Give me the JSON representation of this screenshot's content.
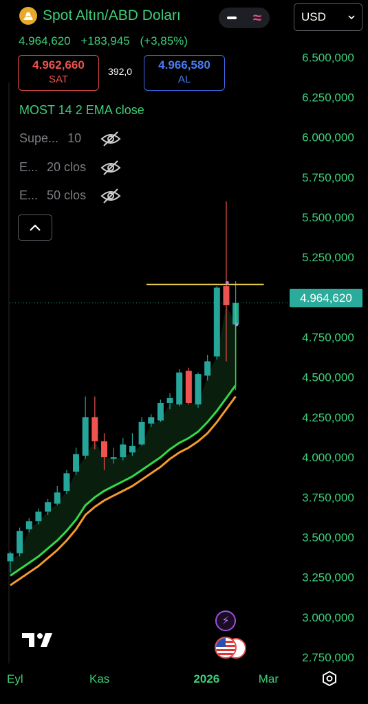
{
  "header": {
    "title": "Spot Altın/ABD Doları",
    "currency": "USD",
    "last_price": "4.964,620",
    "change": "+183,945",
    "change_pct": "(+3,85%)",
    "sell": {
      "value": "4.962,660",
      "label": "SAT"
    },
    "spread": "392,0",
    "buy": {
      "value": "4.966,580",
      "label": "AL"
    }
  },
  "indicators": {
    "main": "MOST 14 2 EMA close",
    "hidden": [
      {
        "name": "Supe...",
        "param": "10"
      },
      {
        "name": "E...",
        "param": "20 clos"
      },
      {
        "name": "E...",
        "param": "50 clos"
      }
    ]
  },
  "price_tag": "4.964,620",
  "colors": {
    "up": "#26a69a",
    "down": "#ef5350",
    "most_line": "#33d94a",
    "ema_line": "#f59a2d",
    "resistance": "#f2d84b",
    "axis_text": "#3ecf78"
  },
  "chart_data": {
    "type": "candlestick",
    "y_ticks": [
      "6.500,000",
      "6.250,000",
      "6.000,000",
      "5.750,000",
      "5.500,000",
      "5.250,000",
      "5.000,000",
      "4.750,000",
      "4.500,000",
      "4.250,000",
      "4.000,000",
      "3.750,000",
      "3.500,000",
      "3.250,000",
      "3.000,000",
      "2.750,000"
    ],
    "y_tick_values": [
      6500,
      6250,
      6000,
      5750,
      5500,
      5250,
      5000,
      4750,
      4500,
      4250,
      4000,
      3750,
      3500,
      3250,
      3000,
      2750
    ],
    "x_ticks": [
      "Eyl",
      "Kas",
      "2026",
      "Mar"
    ],
    "x_tick_index": [
      0.5,
      9.5,
      20.9,
      27.5
    ],
    "ylim": [
      2690,
      6600
    ],
    "candles": [
      {
        "o": 3350,
        "h": 3410,
        "l": 3280,
        "c": 3400
      },
      {
        "o": 3400,
        "h": 3560,
        "l": 3380,
        "c": 3540
      },
      {
        "o": 3550,
        "h": 3620,
        "l": 3530,
        "c": 3600
      },
      {
        "o": 3600,
        "h": 3680,
        "l": 3580,
        "c": 3660
      },
      {
        "o": 3660,
        "h": 3740,
        "l": 3640,
        "c": 3720
      },
      {
        "o": 3710,
        "h": 3820,
        "l": 3700,
        "c": 3780
      },
      {
        "o": 3790,
        "h": 3920,
        "l": 3770,
        "c": 3900
      },
      {
        "o": 3910,
        "h": 4060,
        "l": 3890,
        "c": 4020
      },
      {
        "o": 4010,
        "h": 4380,
        "l": 3990,
        "c": 4250
      },
      {
        "o": 4250,
        "h": 4380,
        "l": 4050,
        "c": 4100
      },
      {
        "o": 4100,
        "h": 4150,
        "l": 3920,
        "c": 4000
      },
      {
        "o": 3990,
        "h": 4060,
        "l": 3960,
        "c": 4000
      },
      {
        "o": 4000,
        "h": 4120,
        "l": 3980,
        "c": 4080
      },
      {
        "o": 4030,
        "h": 4150,
        "l": 4010,
        "c": 4070
      },
      {
        "o": 4080,
        "h": 4250,
        "l": 4070,
        "c": 4220
      },
      {
        "o": 4210,
        "h": 4270,
        "l": 4190,
        "c": 4250
      },
      {
        "o": 4230,
        "h": 4360,
        "l": 4220,
        "c": 4340
      },
      {
        "o": 4340,
        "h": 4400,
        "l": 4300,
        "c": 4370
      },
      {
        "o": 4330,
        "h": 4550,
        "l": 4320,
        "c": 4530
      },
      {
        "o": 4540,
        "h": 4560,
        "l": 4330,
        "c": 4340
      },
      {
        "o": 4330,
        "h": 4530,
        "l": 4310,
        "c": 4520
      },
      {
        "o": 4510,
        "h": 4640,
        "l": 4480,
        "c": 4600
      },
      {
        "o": 4630,
        "h": 5070,
        "l": 4610,
        "c": 5060
      },
      {
        "o": 5070,
        "h": 5600,
        "l": 4600,
        "c": 4950
      },
      {
        "o": 4830,
        "h": 5100,
        "l": 4420,
        "c": 4964.62
      }
    ],
    "most_line": [
      3260,
      3300,
      3340,
      3380,
      3430,
      3480,
      3540,
      3610,
      3700,
      3750,
      3790,
      3820,
      3850,
      3880,
      3920,
      3960,
      4000,
      4050,
      4090,
      4120,
      4160,
      4220,
      4290,
      4370,
      4450
    ],
    "ema_line": [
      3200,
      3240,
      3280,
      3320,
      3370,
      3420,
      3480,
      3550,
      3640,
      3690,
      3730,
      3760,
      3790,
      3820,
      3860,
      3900,
      3940,
      3990,
      4030,
      4060,
      4100,
      4150,
      4220,
      4300,
      4380
    ],
    "resistance_level": 5080
  }
}
